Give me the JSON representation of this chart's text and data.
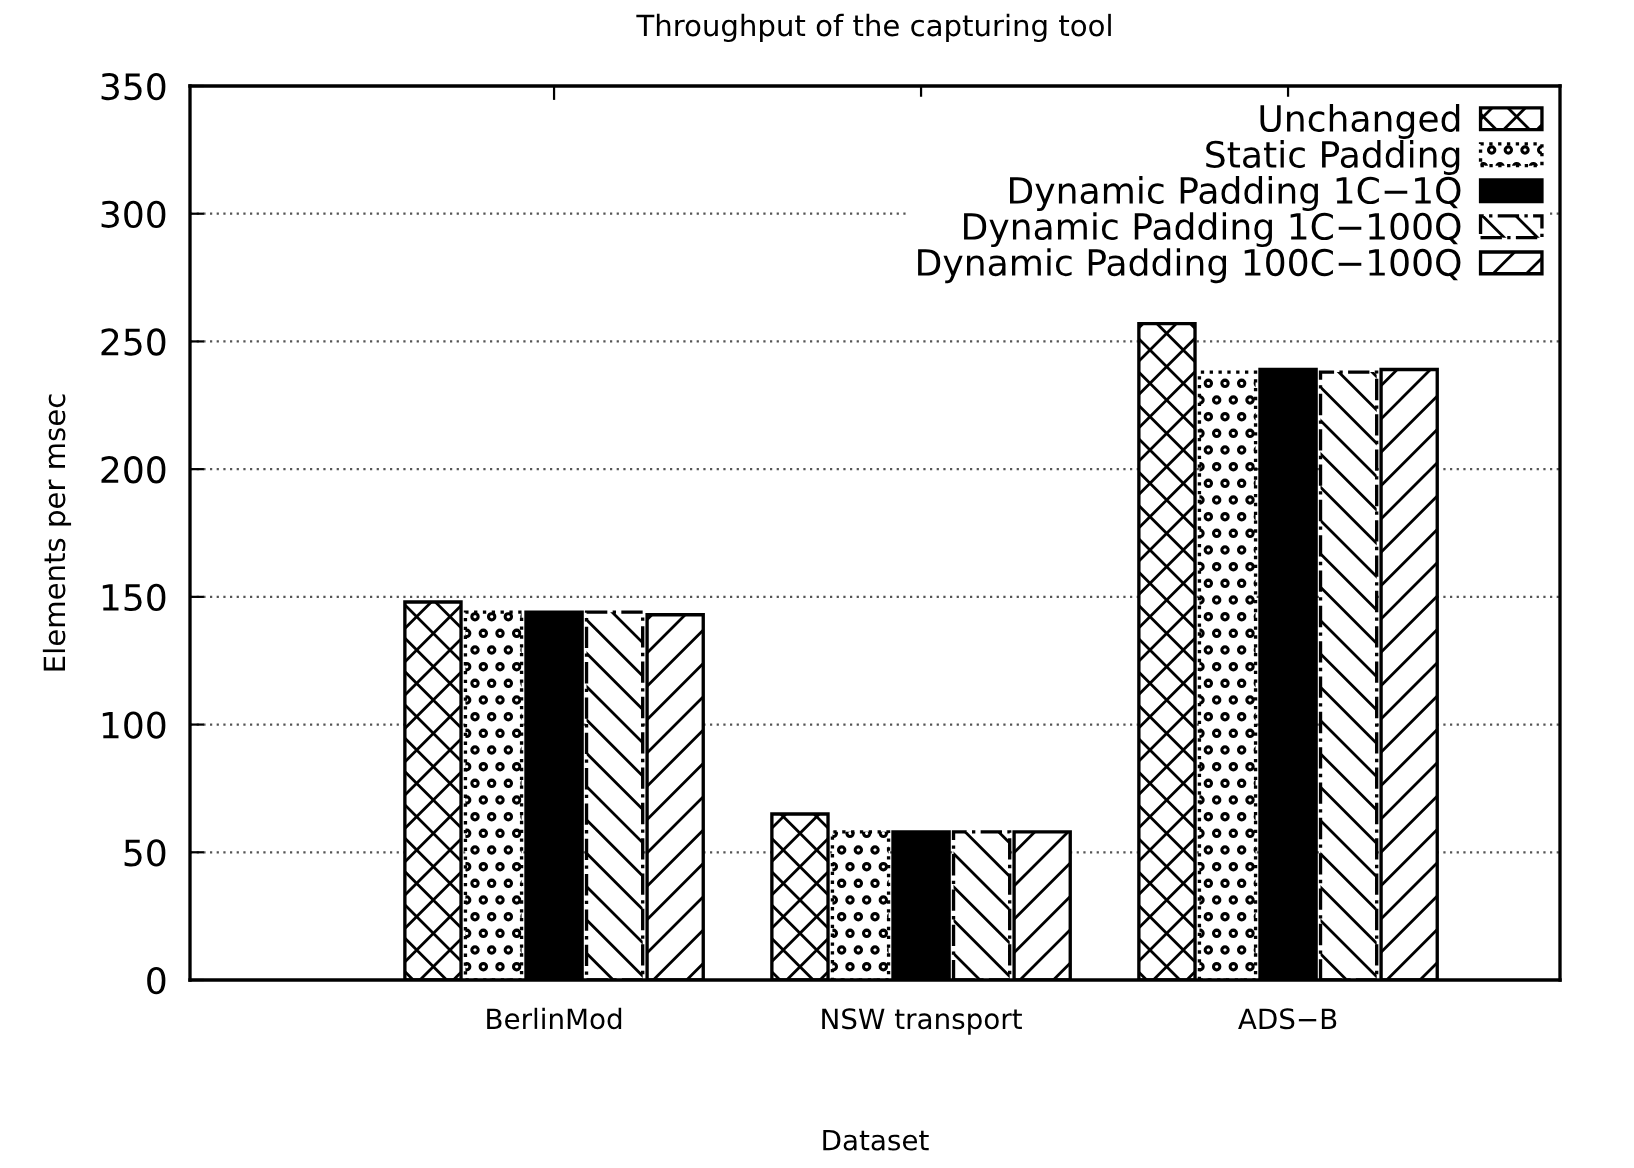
{
  "chart_data": {
    "type": "bar",
    "title": "Throughput of the capturing tool",
    "xlabel": "Dataset",
    "ylabel": "Elements per msec",
    "categories": [
      "BerlinMod",
      "NSW transport",
      "ADS−B"
    ],
    "series": [
      {
        "name": "Unchanged",
        "color": "#000000",
        "values": [
          148,
          65,
          257
        ]
      },
      {
        "name": "Static Padding",
        "color": "#000000",
        "values": [
          144,
          58,
          238
        ]
      },
      {
        "name": "Dynamic Padding 1C−1Q",
        "color": "#000000",
        "values": [
          144,
          58,
          239
        ]
      },
      {
        "name": "Dynamic Padding 1C−100Q",
        "color": "#000000",
        "values": [
          144,
          58,
          238
        ]
      },
      {
        "name": "Dynamic Padding 100C−100Q",
        "color": "#000000",
        "values": [
          143,
          58,
          239
        ]
      }
    ],
    "ylim": [
      0,
      350
    ],
    "yticks": [
      0,
      50,
      100,
      150,
      200,
      250,
      300,
      350
    ],
    "grid": "y",
    "legend": "top right"
  }
}
